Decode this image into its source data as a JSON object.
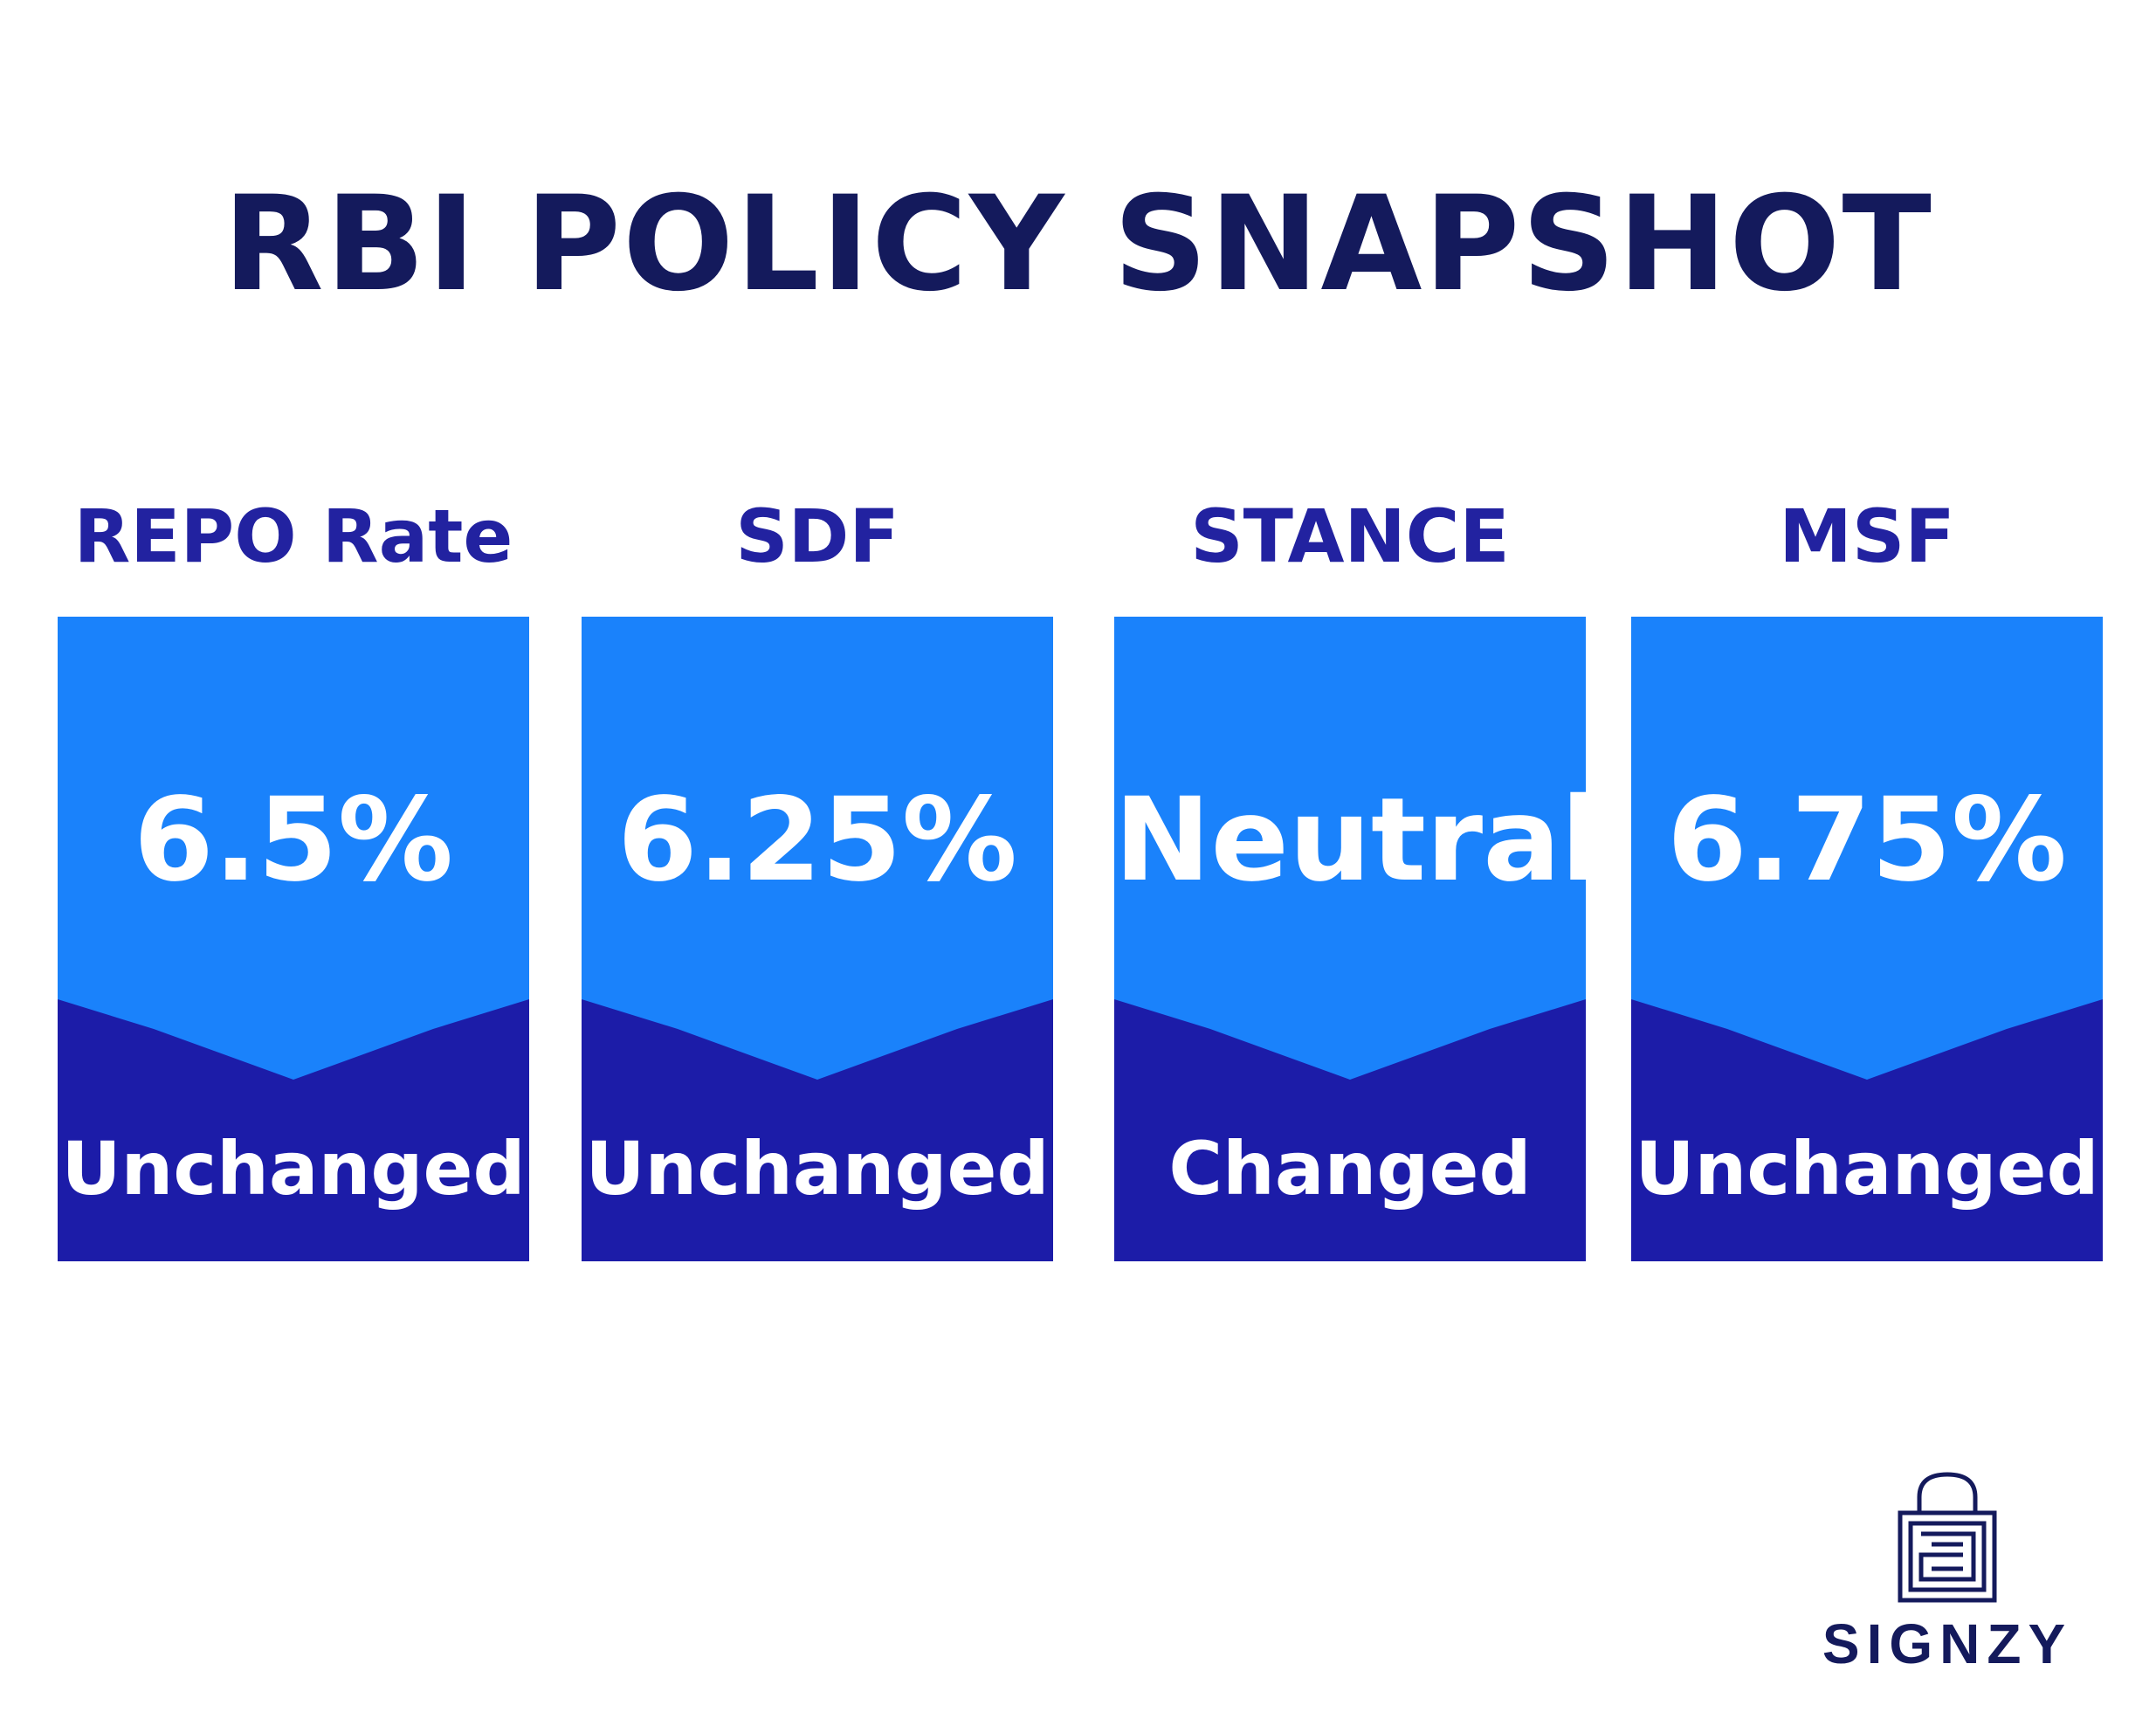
{
  "title": "RBI POLICY SNAPSHOT",
  "colors": {
    "title": "#141a5c",
    "label": "#2222a0",
    "card_top": "#1a82fb",
    "card_bottom": "#1c1ca8",
    "card_text": "#ffffff",
    "logo": "#141a5c"
  },
  "cards": [
    {
      "label": "REPO Rate",
      "value": "6.5%",
      "status": "Unchanged"
    },
    {
      "label": "SDF",
      "value": "6.25%",
      "status": "Unchanged"
    },
    {
      "label": "STANCE",
      "value": "Neutral",
      "status": "Changed"
    },
    {
      "label": "MSF",
      "value": "6.75%",
      "status": "Unchanged"
    }
  ],
  "logo": {
    "icon": "padlock-maze-icon",
    "wordmark": "SIGNZY"
  }
}
